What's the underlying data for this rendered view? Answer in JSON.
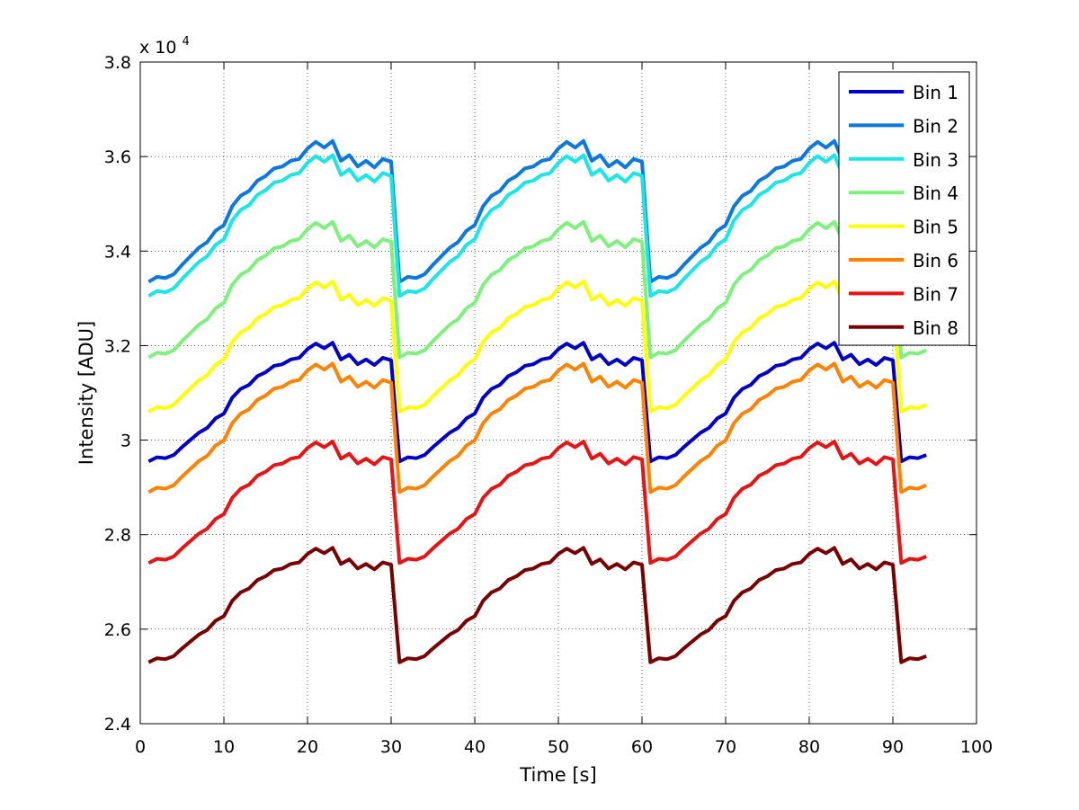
{
  "chart_data": {
    "type": "line",
    "title": "",
    "xlabel": "Time [s]",
    "ylabel": "Intensity [ADU]",
    "y_multiplier_base": "x 10",
    "y_multiplier_exp": "4",
    "xlim": [
      0,
      100
    ],
    "ylim": [
      2.4,
      3.8
    ],
    "xticks": [
      0,
      10,
      20,
      30,
      40,
      50,
      60,
      70,
      80,
      90,
      100
    ],
    "xtick_labels": [
      "0",
      "10",
      "20",
      "30",
      "40",
      "50",
      "60",
      "70",
      "80",
      "90",
      "100"
    ],
    "yticks": [
      2.4,
      2.6,
      2.8,
      3.0,
      3.2,
      3.4,
      3.6,
      3.8
    ],
    "ytick_labels": [
      "2.4",
      "2.6",
      "2.8",
      "3",
      "3.2",
      "3.4",
      "3.6",
      "3.8"
    ],
    "grid": true,
    "legend_position": "top-right",
    "x_start": 1,
    "x_end": 94,
    "cycle": [
      0.0,
      0.026,
      0.02,
      0.04,
      0.09,
      0.135,
      0.18,
      0.21,
      0.27,
      0.3,
      0.4,
      0.455,
      0.48,
      0.535,
      0.56,
      0.6,
      0.61,
      0.64,
      0.65,
      0.705,
      0.74,
      0.71,
      0.745,
      0.64,
      0.67,
      0.61,
      0.64,
      0.605,
      0.65,
      0.635
    ],
    "series": [
      {
        "name": "Bin 1",
        "color": "#0000c8",
        "base": 2.955,
        "amp": 0.337
      },
      {
        "name": "Bin 2",
        "color": "#0a78dc",
        "base": 3.335,
        "amp": 0.4
      },
      {
        "name": "Bin 3",
        "color": "#1ae6e6",
        "base": 3.305,
        "amp": 0.4
      },
      {
        "name": "Bin 4",
        "color": "#7df07d",
        "base": 3.175,
        "amp": 0.385
      },
      {
        "name": "Bin 5",
        "color": "#ffff00",
        "base": 3.06,
        "amp": 0.37
      },
      {
        "name": "Bin 6",
        "color": "#ff8200",
        "base": 2.89,
        "amp": 0.365
      },
      {
        "name": "Bin 7",
        "color": "#e61414",
        "base": 2.74,
        "amp": 0.345
      },
      {
        "name": "Bin 8",
        "color": "#780000",
        "base": 2.53,
        "amp": 0.325
      }
    ]
  }
}
